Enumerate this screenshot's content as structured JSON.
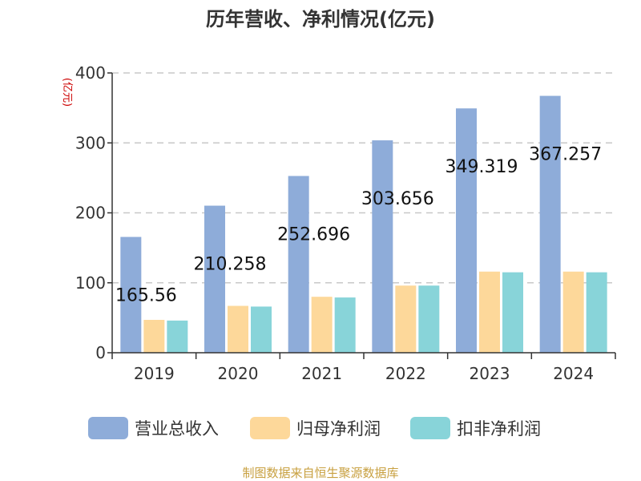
{
  "chart_data": {
    "type": "bar",
    "title": "历年营收、净利情况(亿元)",
    "unit_label": "(亿元)",
    "categories": [
      "2019",
      "2020",
      "2021",
      "2022",
      "2023",
      "2024"
    ],
    "series": [
      {
        "name": "营业总收入",
        "color": "#8eacd9",
        "values": [
          165.56,
          210.258,
          252.696,
          303.656,
          349.319,
          367.257
        ],
        "labels": [
          "165.56",
          "210.258",
          "252.696",
          "303.656",
          "349.319",
          "367.257"
        ]
      },
      {
        "name": "归母净利润",
        "color": "#fdd89a",
        "values": [
          47,
          67,
          80,
          96,
          116,
          116
        ]
      },
      {
        "name": "扣非净利润",
        "color": "#88d4d9",
        "values": [
          46,
          66,
          79,
          96,
          115,
          115
        ]
      }
    ],
    "yticks": [
      "0",
      "100",
      "200",
      "300",
      "400"
    ],
    "ylim": [
      0,
      400
    ],
    "grid": true,
    "legend_position": "bottom",
    "unit_color": "#cc0000"
  },
  "footer": {
    "source": "制图数据来自恒生聚源数据库",
    "color": "#c8a040"
  }
}
